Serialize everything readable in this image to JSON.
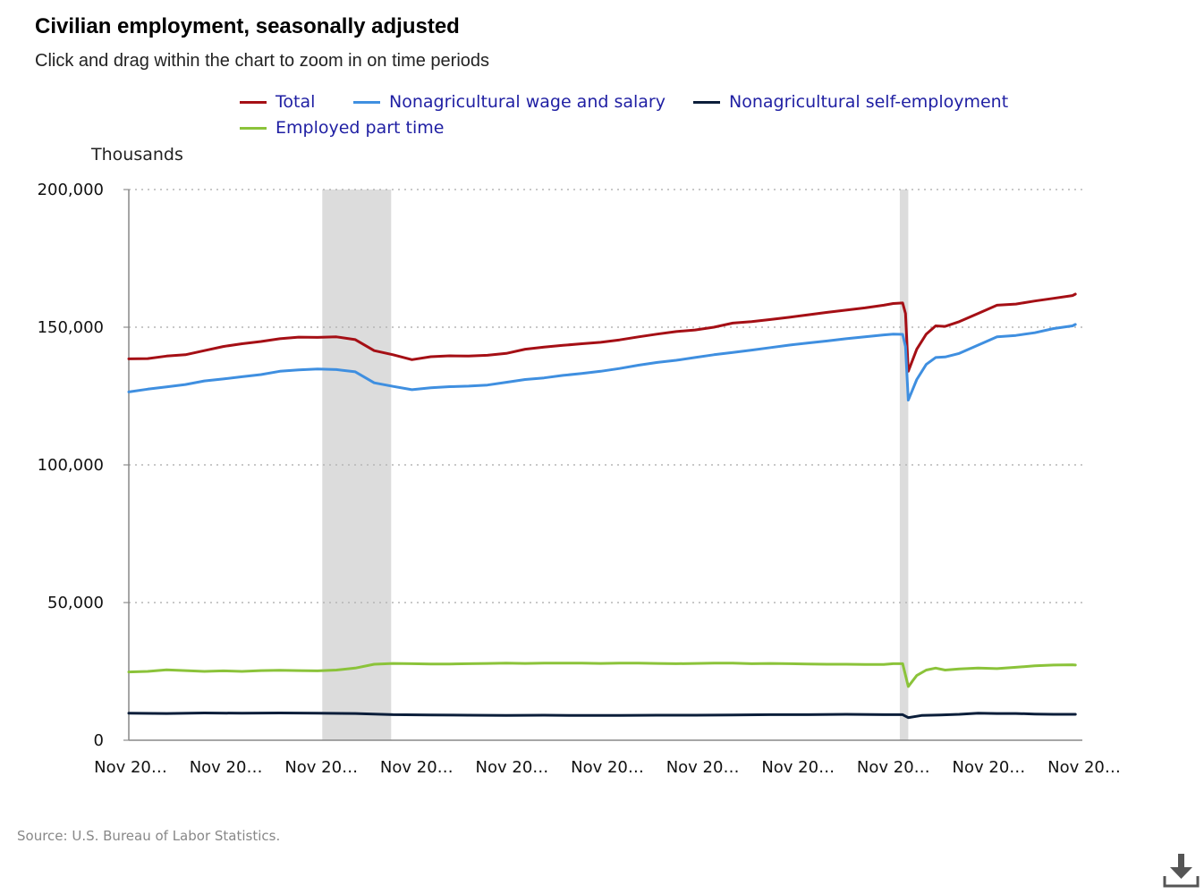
{
  "header": {
    "title": "Civilian employment, seasonally adjusted",
    "subtitle": "Click and drag within the chart to zoom in on time periods"
  },
  "legend": [
    {
      "label": "Total",
      "color": "#a50f15"
    },
    {
      "label": "Nonagricultural wage and salary",
      "color": "#3f8fe0"
    },
    {
      "label": "Nonagricultural self-employment",
      "color": "#0b1e3a"
    },
    {
      "label": "Employed part time",
      "color": "#8bc33a"
    }
  ],
  "unit_label": "Thousands",
  "source": "Source: U.S. Bureau of Labor Statistics.",
  "download_icon": "download-icon",
  "chart_data": {
    "type": "line",
    "ylim": [
      0,
      200000
    ],
    "ylabel": "Thousands",
    "grid": true,
    "legend_position": "top",
    "y_ticks": [
      "0",
      "50,000",
      "100,000",
      "150,000",
      "200,000"
    ],
    "x_ticks": [
      "Nov 20…",
      "Nov 20…",
      "Nov 20…",
      "Nov 20…",
      "Nov 20…",
      "Nov 20…",
      "Nov 20…",
      "Nov 20…",
      "Nov 20…",
      "Nov 20…",
      "Nov 20…"
    ],
    "x_range": [
      0,
      240
    ],
    "recessions": [
      [
        20.5,
        27.8
      ],
      [
        81.7,
        82.6
      ]
    ],
    "series": [
      {
        "name": "Total",
        "color": "#a50f15",
        "points": [
          [
            0,
            138500
          ],
          [
            2,
            138600
          ],
          [
            4,
            139500
          ],
          [
            6,
            140000
          ],
          [
            8,
            141500
          ],
          [
            10,
            143000
          ],
          [
            12,
            144000
          ],
          [
            14,
            144800
          ],
          [
            16,
            145800
          ],
          [
            18,
            146400
          ],
          [
            20,
            146300
          ],
          [
            22,
            146500
          ],
          [
            24,
            145500
          ],
          [
            26,
            141500
          ],
          [
            28,
            140000
          ],
          [
            30,
            138200
          ],
          [
            32,
            139300
          ],
          [
            34,
            139600
          ],
          [
            36,
            139500
          ],
          [
            38,
            139800
          ],
          [
            40,
            140500
          ],
          [
            42,
            142000
          ],
          [
            44,
            142800
          ],
          [
            46,
            143400
          ],
          [
            48,
            144000
          ],
          [
            50,
            144500
          ],
          [
            52,
            145400
          ],
          [
            54,
            146500
          ],
          [
            56,
            147500
          ],
          [
            58,
            148400
          ],
          [
            60,
            149000
          ],
          [
            62,
            150000
          ],
          [
            64,
            151500
          ],
          [
            66,
            152000
          ],
          [
            68,
            152800
          ],
          [
            70,
            153600
          ],
          [
            72,
            154500
          ],
          [
            74,
            155400
          ],
          [
            76,
            156200
          ],
          [
            78,
            157000
          ],
          [
            80,
            158000
          ],
          [
            81,
            158600
          ],
          [
            82,
            158800
          ],
          [
            82.3,
            155000
          ],
          [
            82.6,
            134000
          ],
          [
            83.5,
            142000
          ],
          [
            84.5,
            147500
          ],
          [
            85.5,
            150500
          ],
          [
            86.5,
            150300
          ],
          [
            88,
            152000
          ],
          [
            90,
            155000
          ],
          [
            92,
            158000
          ],
          [
            94,
            158400
          ],
          [
            96,
            159500
          ],
          [
            98,
            160500
          ],
          [
            100,
            161500
          ],
          [
            100.3,
            162000
          ]
        ]
      },
      {
        "name": "Nonagricultural wage and salary",
        "color": "#3f8fe0",
        "points": [
          [
            0,
            126500
          ],
          [
            2,
            127500
          ],
          [
            4,
            128300
          ],
          [
            6,
            129200
          ],
          [
            8,
            130500
          ],
          [
            10,
            131200
          ],
          [
            12,
            132000
          ],
          [
            14,
            132800
          ],
          [
            16,
            134000
          ],
          [
            18,
            134500
          ],
          [
            20,
            134800
          ],
          [
            22,
            134600
          ],
          [
            24,
            133800
          ],
          [
            26,
            129800
          ],
          [
            28,
            128500
          ],
          [
            30,
            127300
          ],
          [
            32,
            128000
          ],
          [
            34,
            128400
          ],
          [
            36,
            128600
          ],
          [
            38,
            129000
          ],
          [
            40,
            130000
          ],
          [
            42,
            131000
          ],
          [
            44,
            131600
          ],
          [
            46,
            132500
          ],
          [
            48,
            133200
          ],
          [
            50,
            134000
          ],
          [
            52,
            135000
          ],
          [
            54,
            136200
          ],
          [
            56,
            137200
          ],
          [
            58,
            138000
          ],
          [
            60,
            139000
          ],
          [
            62,
            140000
          ],
          [
            64,
            140800
          ],
          [
            66,
            141700
          ],
          [
            68,
            142600
          ],
          [
            70,
            143500
          ],
          [
            72,
            144300
          ],
          [
            74,
            145000
          ],
          [
            76,
            145800
          ],
          [
            78,
            146500
          ],
          [
            80,
            147200
          ],
          [
            81,
            147500
          ],
          [
            82,
            147400
          ],
          [
            82.3,
            143000
          ],
          [
            82.6,
            123500
          ],
          [
            83.5,
            131000
          ],
          [
            84.5,
            136500
          ],
          [
            85.5,
            139000
          ],
          [
            86.5,
            139200
          ],
          [
            88,
            140500
          ],
          [
            90,
            143500
          ],
          [
            92,
            146500
          ],
          [
            94,
            147000
          ],
          [
            96,
            148000
          ],
          [
            98,
            149500
          ],
          [
            100,
            150500
          ],
          [
            100.3,
            151000
          ]
        ]
      },
      {
        "name": "Nonagricultural self-employment",
        "color": "#0b1e3a",
        "points": [
          [
            0,
            9800
          ],
          [
            4,
            9700
          ],
          [
            8,
            9900
          ],
          [
            12,
            9800
          ],
          [
            16,
            9900
          ],
          [
            20,
            9800
          ],
          [
            24,
            9700
          ],
          [
            28,
            9300
          ],
          [
            32,
            9200
          ],
          [
            36,
            9100
          ],
          [
            40,
            9000
          ],
          [
            44,
            9100
          ],
          [
            48,
            9000
          ],
          [
            52,
            9000
          ],
          [
            56,
            9100
          ],
          [
            60,
            9100
          ],
          [
            64,
            9200
          ],
          [
            68,
            9300
          ],
          [
            72,
            9300
          ],
          [
            76,
            9400
          ],
          [
            80,
            9300
          ],
          [
            82,
            9300
          ],
          [
            82.6,
            8200
          ],
          [
            84,
            9000
          ],
          [
            86,
            9200
          ],
          [
            88,
            9400
          ],
          [
            90,
            9800
          ],
          [
            92,
            9700
          ],
          [
            94,
            9700
          ],
          [
            96,
            9500
          ],
          [
            98,
            9400
          ],
          [
            100,
            9400
          ],
          [
            100.3,
            9400
          ]
        ]
      },
      {
        "name": "Employed part time",
        "color": "#8bc33a",
        "points": [
          [
            0,
            24800
          ],
          [
            2,
            25000
          ],
          [
            4,
            25600
          ],
          [
            6,
            25300
          ],
          [
            8,
            25000
          ],
          [
            10,
            25200
          ],
          [
            12,
            25000
          ],
          [
            14,
            25300
          ],
          [
            16,
            25400
          ],
          [
            18,
            25300
          ],
          [
            20,
            25200
          ],
          [
            22,
            25500
          ],
          [
            24,
            26200
          ],
          [
            26,
            27600
          ],
          [
            28,
            27900
          ],
          [
            30,
            27800
          ],
          [
            32,
            27700
          ],
          [
            34,
            27700
          ],
          [
            36,
            27800
          ],
          [
            38,
            27900
          ],
          [
            40,
            28000
          ],
          [
            42,
            27900
          ],
          [
            44,
            28000
          ],
          [
            46,
            28000
          ],
          [
            48,
            28000
          ],
          [
            50,
            27900
          ],
          [
            52,
            28000
          ],
          [
            54,
            28000
          ],
          [
            56,
            27900
          ],
          [
            58,
            27800
          ],
          [
            60,
            27900
          ],
          [
            62,
            28000
          ],
          [
            64,
            28000
          ],
          [
            66,
            27800
          ],
          [
            68,
            27900
          ],
          [
            70,
            27800
          ],
          [
            72,
            27700
          ],
          [
            74,
            27600
          ],
          [
            76,
            27600
          ],
          [
            78,
            27500
          ],
          [
            80,
            27500
          ],
          [
            81,
            27800
          ],
          [
            82,
            27800
          ],
          [
            82.6,
            19500
          ],
          [
            83.5,
            23500
          ],
          [
            84.5,
            25500
          ],
          [
            85.5,
            26200
          ],
          [
            86.5,
            25500
          ],
          [
            88,
            25900
          ],
          [
            90,
            26200
          ],
          [
            92,
            26000
          ],
          [
            94,
            26500
          ],
          [
            96,
            27000
          ],
          [
            98,
            27300
          ],
          [
            100,
            27400
          ],
          [
            100.3,
            27300
          ]
        ]
      }
    ]
  }
}
